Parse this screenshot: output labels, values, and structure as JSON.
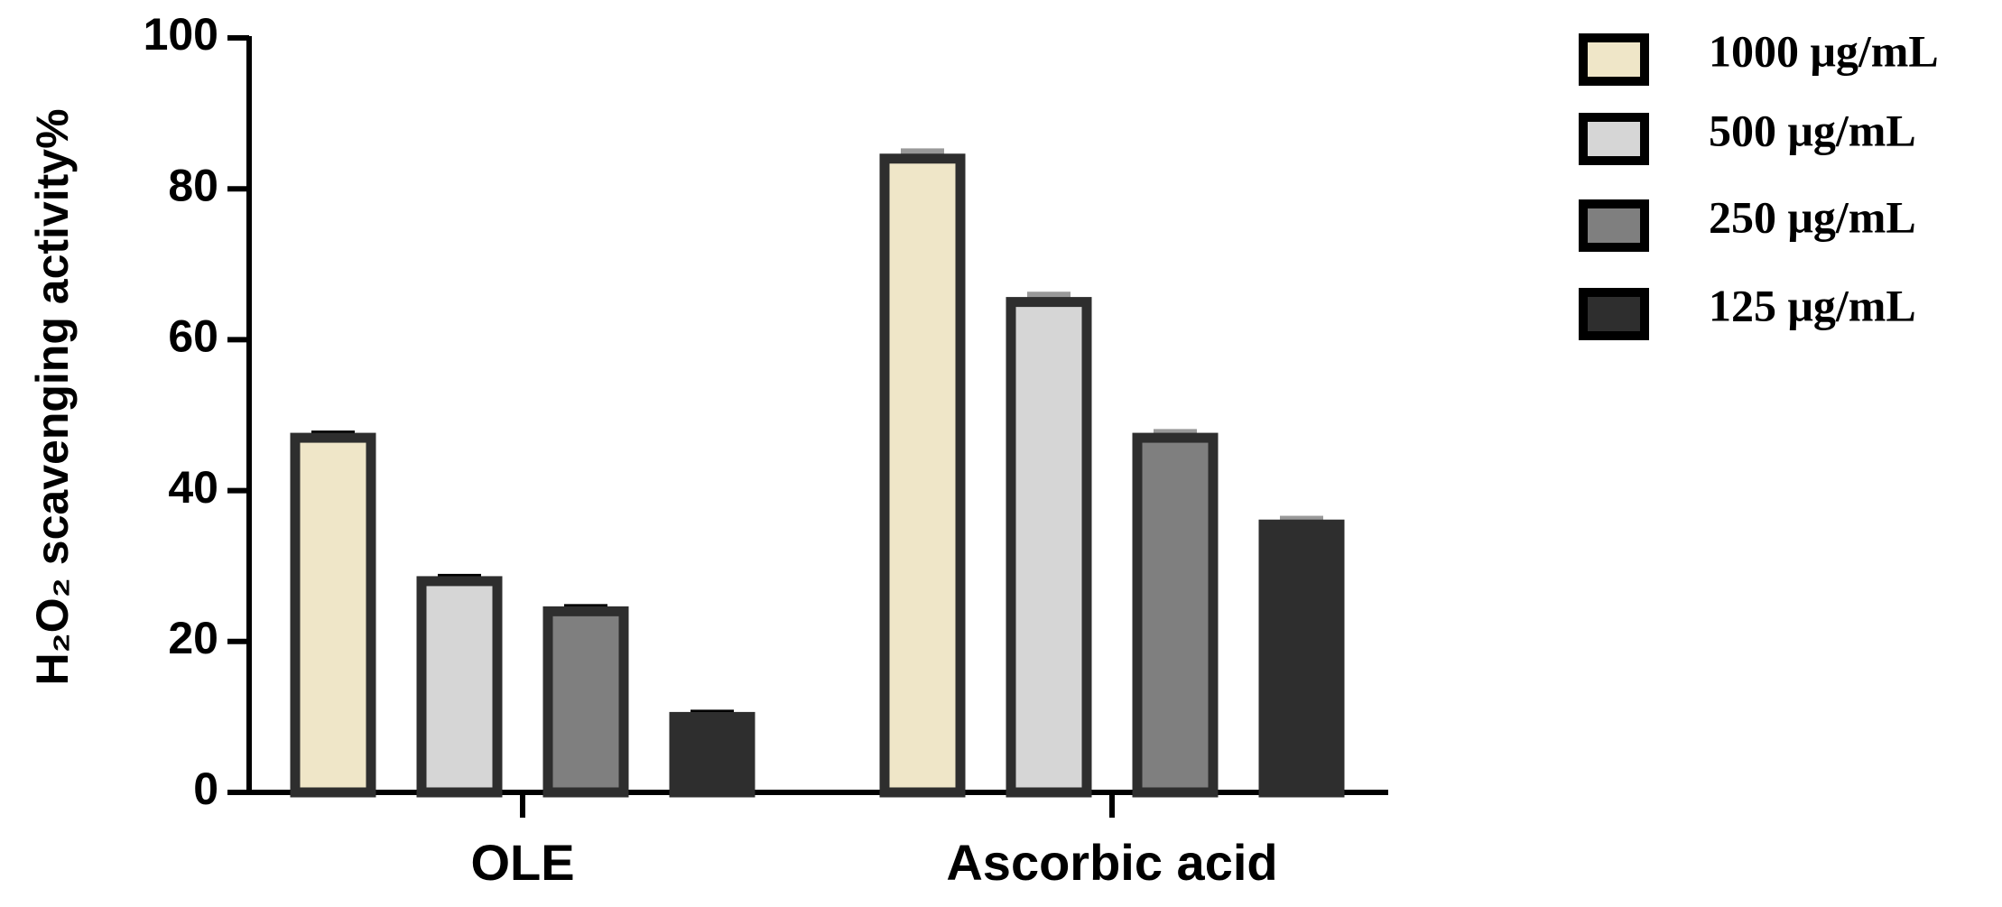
{
  "chart_data": {
    "type": "bar",
    "y_label": "H₂O₂ scavenging activity%",
    "categories": [
      "OLE",
      "Ascorbic acid"
    ],
    "series": [
      {
        "name": "1000 μg/mL",
        "color": "#efe6c8",
        "values": [
          47,
          84
        ],
        "errors": [
          0.6,
          1
        ]
      },
      {
        "name": "500 μg/mL",
        "color": "#d6d6d6",
        "values": [
          28,
          65
        ],
        "errors": [
          0.6,
          1
        ]
      },
      {
        "name": "250 μg/mL",
        "color": "#7f7f7f",
        "values": [
          24,
          47
        ],
        "errors": [
          0.6,
          0.8
        ]
      },
      {
        "name": "125 μg/mL",
        "color": "#2e2e2e",
        "values": [
          10,
          35.5
        ],
        "errors": [
          0.6,
          0.8
        ]
      }
    ],
    "error_colors": [
      "#000000",
      "#999999"
    ],
    "ylim": [
      0,
      100
    ],
    "yticks": [
      0,
      20,
      40,
      60,
      80,
      100
    ],
    "legend": "right"
  }
}
